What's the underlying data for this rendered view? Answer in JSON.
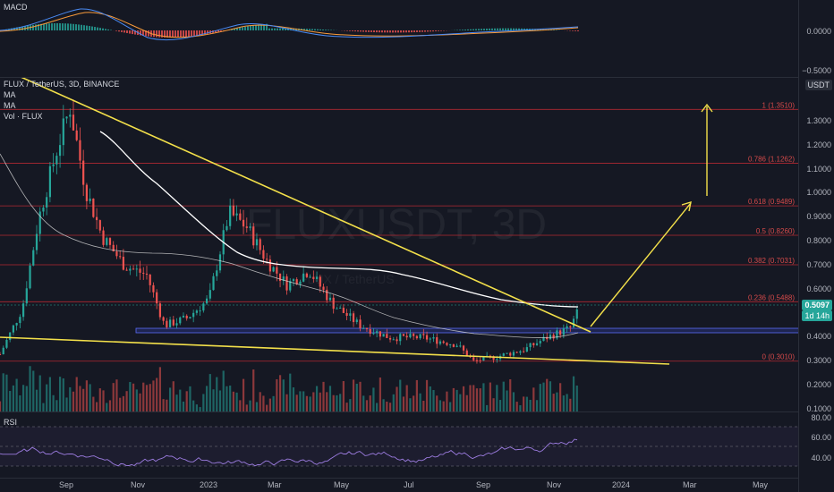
{
  "macd": {
    "label": "MACD",
    "ticks": [
      "0.0000",
      "−0.5000"
    ]
  },
  "chart": {
    "symbol_line": "FLUX / TetherUS, 3D, BINANCE",
    "indicators": [
      "MA",
      "MA",
      "Vol · FLUX"
    ],
    "watermark": "FLUXUSDT, 3D",
    "watermark_sub": "FLUX / TetherUS",
    "price_ticks": [
      "1.3000",
      "1.2000",
      "1.1000",
      "1.0000",
      "0.9000",
      "0.8000",
      "0.7000",
      "0.6000",
      "0.5000",
      "0.4000",
      "0.3000",
      "0.2000",
      "0.1000"
    ],
    "fib_levels": [
      {
        "label": "1 (1.3510)"
      },
      {
        "label": "0.786 (1.1262)"
      },
      {
        "label": "0.618 (0.9489)"
      },
      {
        "label": "0.5 (0.8260)"
      },
      {
        "label": "0.382 (0.7031)"
      },
      {
        "label": "0.236 (0.5488)"
      },
      {
        "label": "0 (0.3010)"
      }
    ],
    "currency_badge": "USDT",
    "last_price": "0.5097",
    "countdown": "1d 14h",
    "colors": {
      "up": "#26a69a",
      "down": "#ef5350",
      "fib": "#b22833",
      "trend": "#f3e04a",
      "support": "#5b6cf5",
      "ma_white": "#ffffff"
    }
  },
  "rsi": {
    "label": "RSI",
    "ticks": [
      "80.00",
      "60.00",
      "40.00"
    ]
  },
  "time_axis": [
    "Sep",
    "Nov",
    "2023",
    "Mar",
    "May",
    "Jul",
    "Sep",
    "Nov",
    "2024",
    "Mar",
    "May"
  ],
  "chart_data": {
    "type": "candlestick",
    "timeframe": "3D",
    "y_range": [
      0.05,
      1.42
    ],
    "close_path": [
      [
        "2022-06-20",
        0.33
      ],
      [
        "2022-07-10",
        0.52
      ],
      [
        "2022-07-25",
        0.9
      ],
      [
        "2022-08-10",
        1.18
      ],
      [
        "2022-08-22",
        1.36
      ],
      [
        "2022-09-05",
        1.02
      ],
      [
        "2022-09-20",
        0.82
      ],
      [
        "2022-10-10",
        0.7
      ],
      [
        "2022-10-30",
        0.66
      ],
      [
        "2022-11-15",
        0.45
      ],
      [
        "2022-12-05",
        0.48
      ],
      [
        "2022-12-25",
        0.56
      ],
      [
        "2023-01-12",
        0.92
      ],
      [
        "2023-01-28",
        0.86
      ],
      [
        "2023-02-15",
        0.72
      ],
      [
        "2023-03-05",
        0.62
      ],
      [
        "2023-03-25",
        0.68
      ],
      [
        "2023-04-15",
        0.54
      ],
      [
        "2023-05-10",
        0.45
      ],
      [
        "2023-06-05",
        0.4
      ],
      [
        "2023-07-05",
        0.4
      ],
      [
        "2023-08-05",
        0.37
      ],
      [
        "2023-08-20",
        0.3
      ],
      [
        "2023-09-10",
        0.32
      ],
      [
        "2023-10-05",
        0.35
      ],
      [
        "2023-10-25",
        0.4
      ],
      [
        "2023-11-15",
        0.44
      ],
      [
        "2023-11-22",
        0.51
      ]
    ],
    "fib_retracement": [
      {
        "level": 1,
        "price": 1.351
      },
      {
        "level": 0.786,
        "price": 1.1262
      },
      {
        "level": 0.618,
        "price": 0.9489
      },
      {
        "level": 0.5,
        "price": 0.826
      },
      {
        "level": 0.382,
        "price": 0.7031
      },
      {
        "level": 0.236,
        "price": 0.5488
      },
      {
        "level": 0,
        "price": 0.301
      }
    ],
    "last_price": 0.5097,
    "rsi_levels": [
      70,
      50,
      30
    ]
  }
}
